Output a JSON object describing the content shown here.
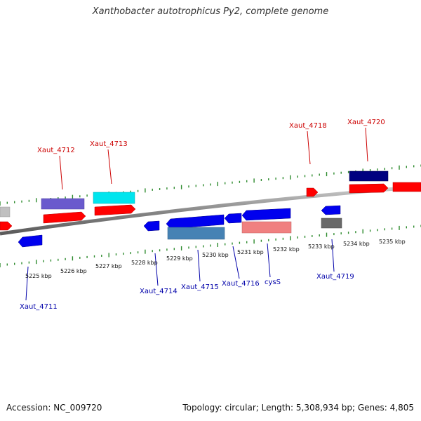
{
  "title": "Xanthobacter autotrophicus Py2, complete genome",
  "footer": {
    "accession": "Accession: NC_009720",
    "info": "Topology: circular; Length: 5,308,934 bp; Genes: 4,805"
  },
  "colors": {
    "axis": "#8c8c8c",
    "tick": "#2e8b2e",
    "top_label": "#cc0000",
    "bottom_label": "#0000aa"
  },
  "scale_labels": [
    "5225 kbp",
    "5226 kbp",
    "5227 kbp",
    "5228 kbp",
    "5229 kbp",
    "5230 kbp",
    "5231 kbp",
    "5232 kbp",
    "5233 kbp",
    "5234 kbp",
    "5235 kbp"
  ],
  "top_labels": [
    "Xaut_4712",
    "Xaut_4713",
    "Xaut_4718",
    "Xaut_4720"
  ],
  "bottom_labels": [
    "Xaut_4711",
    "Xaut_4714",
    "Xaut_4715",
    "Xaut_4716",
    "cysS",
    "Xaut_4719"
  ]
}
